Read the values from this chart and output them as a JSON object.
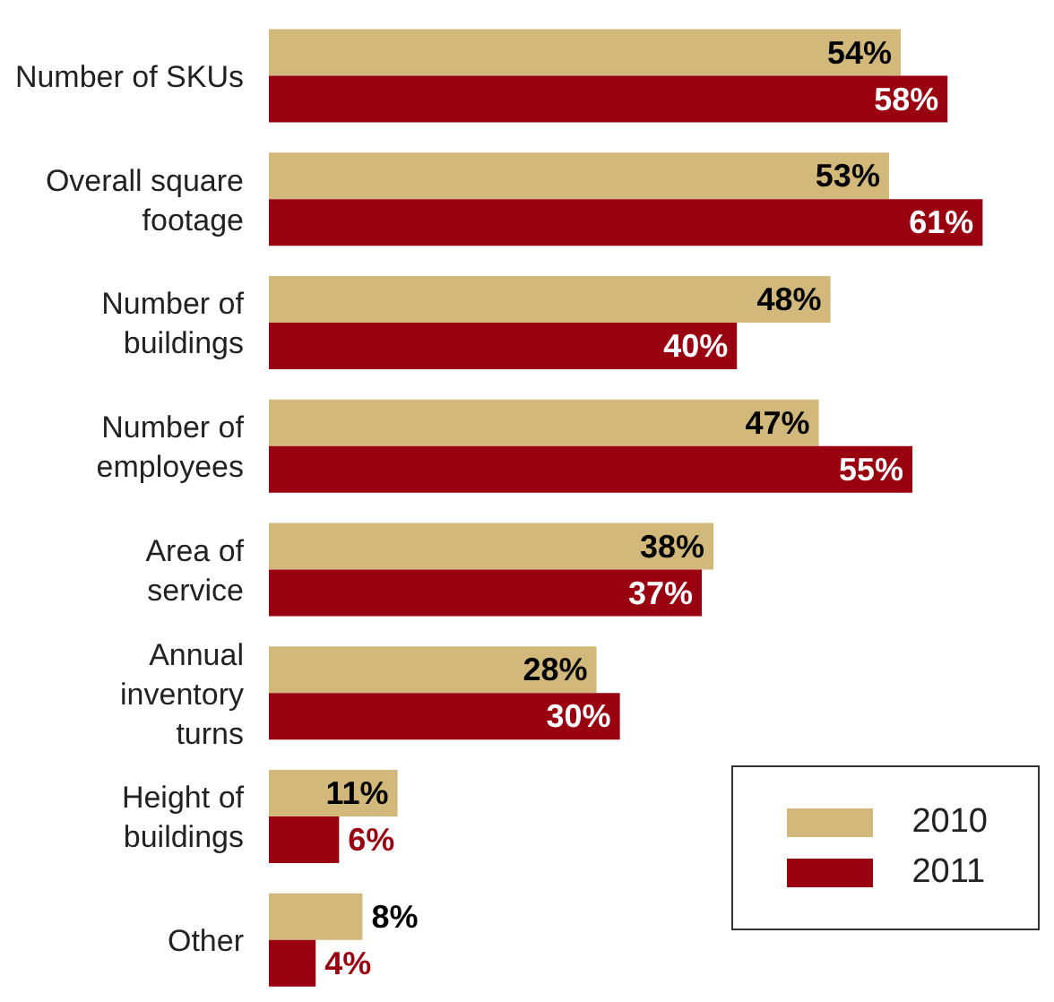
{
  "chart_data": {
    "type": "bar",
    "orientation": "horizontal",
    "categories": [
      "Number of SKUs",
      "Overall square footage",
      "Number of buildings",
      "Number of employees",
      "Area of service",
      "Annual inventory turns",
      "Height of buildings",
      "Other"
    ],
    "series": [
      {
        "name": "2010",
        "color": "#d2b97b",
        "values": [
          54,
          53,
          48,
          47,
          38,
          28,
          11,
          8
        ],
        "value_labels": [
          "54%",
          "53%",
          "48%",
          "47%",
          "38%",
          "28%",
          "11%",
          "8%"
        ]
      },
      {
        "name": "2011",
        "color": "#990010",
        "values": [
          58,
          61,
          40,
          55,
          37,
          30,
          6,
          4
        ],
        "value_labels": [
          "58%",
          "61%",
          "40%",
          "55%",
          "37%",
          "30%",
          "6%",
          "4%"
        ]
      }
    ],
    "legend": "bottom right",
    "grid": false
  }
}
